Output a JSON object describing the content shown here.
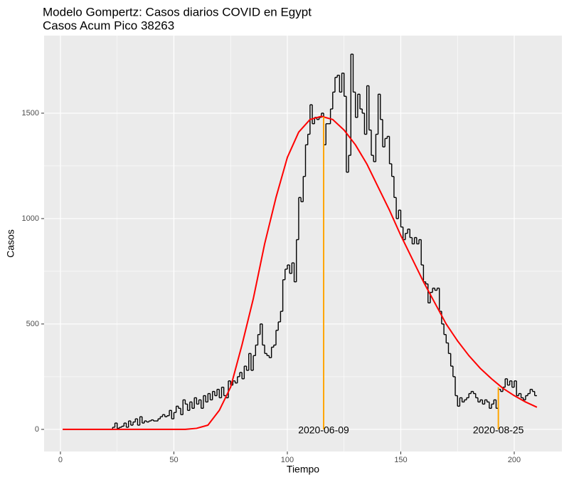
{
  "chart_data": {
    "type": "line",
    "title": "Modelo Gompertz: Casos diarios COVID en Egypt",
    "subtitle": "Casos Acum Pico 38263",
    "x_label": "Tiempo",
    "y_label": "Casos",
    "xlim": [
      -7.2,
      221
    ],
    "ylim": [
      -105,
      1868
    ],
    "xticks": [
      0,
      50,
      100,
      150,
      200
    ],
    "yticks": [
      0,
      500,
      1000,
      1500
    ],
    "grid": true,
    "series": [
      {
        "color": "#000000",
        "step": true,
        "x": [
          1,
          2,
          3,
          4,
          5,
          6,
          7,
          8,
          9,
          10,
          11,
          12,
          13,
          14,
          15,
          16,
          17,
          18,
          19,
          20,
          21,
          22,
          23,
          24,
          25,
          26,
          27,
          28,
          29,
          30,
          31,
          32,
          33,
          34,
          35,
          36,
          37,
          38,
          39,
          40,
          41,
          42,
          43,
          44,
          45,
          46,
          47,
          48,
          49,
          50,
          51,
          52,
          53,
          54,
          55,
          56,
          57,
          58,
          59,
          60,
          61,
          62,
          63,
          64,
          65,
          66,
          67,
          68,
          69,
          70,
          71,
          72,
          73,
          74,
          75,
          76,
          77,
          78,
          79,
          80,
          81,
          82,
          83,
          84,
          85,
          86,
          87,
          88,
          89,
          90,
          91,
          92,
          93,
          94,
          95,
          96,
          97,
          98,
          99,
          100,
          101,
          102,
          103,
          104,
          105,
          106,
          107,
          108,
          109,
          110,
          111,
          112,
          113,
          114,
          115,
          116,
          117,
          118,
          119,
          120,
          121,
          122,
          123,
          124,
          125,
          126,
          127,
          128,
          129,
          130,
          131,
          132,
          133,
          134,
          135,
          136,
          137,
          138,
          139,
          140,
          141,
          142,
          143,
          144,
          145,
          146,
          147,
          148,
          149,
          150,
          151,
          152,
          153,
          154,
          155,
          156,
          157,
          158,
          159,
          160,
          161,
          162,
          163,
          164,
          165,
          166,
          167,
          168,
          169,
          170,
          171,
          172,
          173,
          174,
          175,
          176,
          177,
          178,
          179,
          180,
          181,
          182,
          183,
          184,
          185,
          186,
          187,
          188,
          189,
          190,
          191,
          192,
          193,
          194,
          195,
          196,
          197,
          198,
          199,
          200,
          201,
          202,
          203,
          204,
          205,
          206,
          207,
          208,
          209,
          210
        ],
        "values": [
          0,
          0,
          0,
          0,
          0,
          0,
          0,
          0,
          0,
          0,
          0,
          0,
          0,
          0,
          0,
          0,
          0,
          0,
          0,
          0,
          0,
          0,
          10,
          30,
          5,
          10,
          15,
          30,
          10,
          40,
          20,
          35,
          50,
          20,
          60,
          30,
          40,
          35,
          40,
          45,
          40,
          40,
          50,
          60,
          70,
          60,
          65,
          90,
          50,
          80,
          110,
          100,
          70,
          140,
          120,
          90,
          130,
          100,
          150,
          120,
          140,
          100,
          160,
          130,
          170,
          140,
          180,
          160,
          190,
          150,
          200,
          160,
          150,
          230,
          210,
          230,
          220,
          250,
          270,
          240,
          300,
          280,
          360,
          280,
          350,
          400,
          450,
          500,
          400,
          360,
          350,
          340,
          390,
          400,
          470,
          510,
          560,
          710,
          760,
          780,
          740,
          790,
          700,
          900,
          1100,
          1080,
          1200,
          1350,
          1400,
          1540,
          1450,
          1480,
          1470,
          1480,
          1500,
          1350,
          1450,
          1450,
          1520,
          1600,
          1670,
          1680,
          1600,
          1690,
          1580,
          1220,
          1300,
          1780,
          1600,
          1480,
          1590,
          1520,
          1500,
          1400,
          1630,
          1420,
          1300,
          1270,
          1400,
          1590,
          1470,
          1340,
          1380,
          1390,
          1260,
          1200,
          1100,
          1000,
          1040,
          960,
          900,
          930,
          950,
          910,
          880,
          910,
          880,
          900,
          780,
          700,
          690,
          600,
          650,
          670,
          660,
          670,
          560,
          500,
          450,
          410,
          360,
          300,
          250,
          160,
          110,
          150,
          130,
          140,
          150,
          170,
          180,
          170,
          150,
          130,
          140,
          120,
          140,
          130,
          100,
          120,
          140,
          100,
          190,
          180,
          200,
          240,
          210,
          230,
          200,
          230,
          160,
          170,
          150,
          140,
          160,
          170,
          190,
          180,
          160,
          160
        ]
      },
      {
        "color": "#ff0000",
        "x": [
          1,
          50,
          55,
          60,
          65,
          70,
          75,
          80,
          85,
          90,
          95,
          100,
          105,
          110,
          115,
          120,
          125,
          130,
          135,
          140,
          145,
          150,
          155,
          160,
          165,
          170,
          175,
          180,
          185,
          190,
          195,
          200,
          205,
          210
        ],
        "values": [
          0,
          0,
          0,
          5,
          20,
          90,
          200,
          400,
          620,
          880,
          1100,
          1290,
          1410,
          1470,
          1485,
          1470,
          1420,
          1350,
          1260,
          1150,
          1040,
          920,
          810,
          700,
          600,
          500,
          420,
          350,
          290,
          240,
          195,
          160,
          130,
          105
        ]
      }
    ],
    "annotations": [
      {
        "x": 116,
        "y": 1483,
        "text": "2020-06-09",
        "color": "#ffa500"
      },
      {
        "x": 193,
        "y": 200,
        "text": "2020-08-25",
        "color": "#ffa500"
      }
    ]
  }
}
